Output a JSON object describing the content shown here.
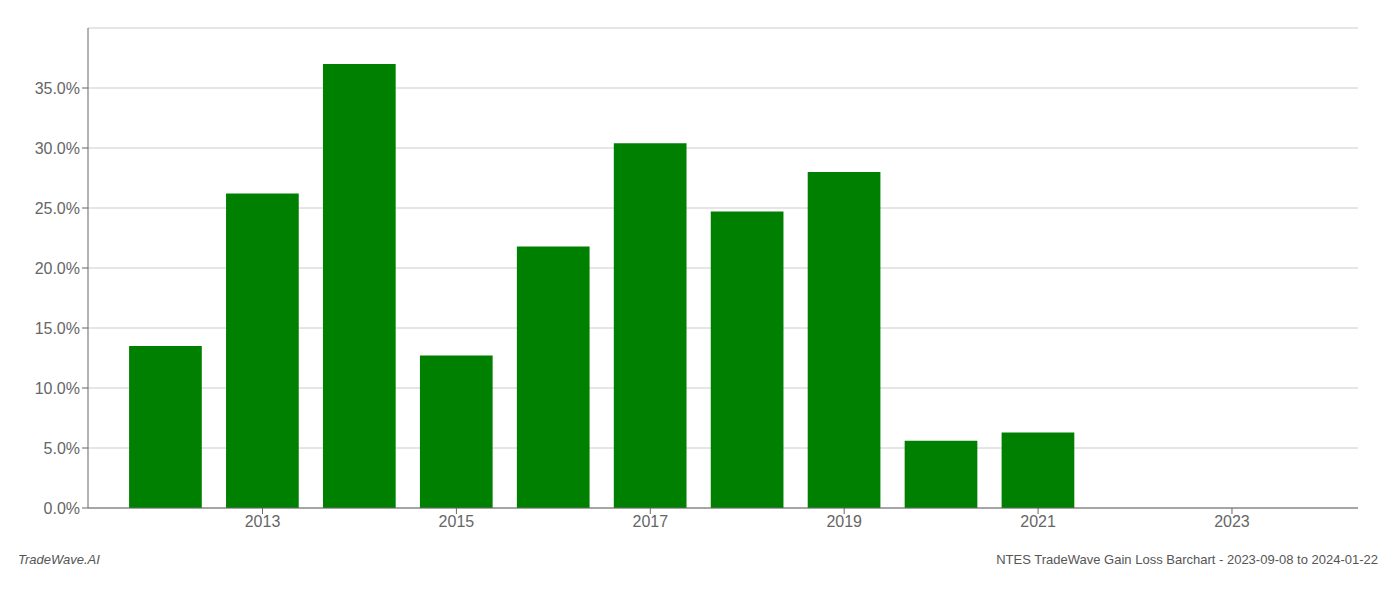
{
  "chart_data": {
    "type": "bar",
    "x": [
      2012,
      2013,
      2014,
      2015,
      2016,
      2017,
      2018,
      2019,
      2020,
      2021,
      2022
    ],
    "values": [
      0.135,
      0.262,
      0.37,
      0.127,
      0.218,
      0.304,
      0.247,
      0.28,
      0.056,
      0.063,
      0.0
    ],
    "color": "#008000",
    "xlim": [
      2011.2,
      2024.3
    ],
    "xticks": [
      2013,
      2015,
      2017,
      2019,
      2021,
      2023
    ],
    "ylim": [
      0,
      0.4
    ],
    "yticks": [
      {
        "value": 0.0,
        "label": "0.0%"
      },
      {
        "value": 0.05,
        "label": "5.0%"
      },
      {
        "value": 0.1,
        "label": "10.0%"
      },
      {
        "value": 0.15,
        "label": "15.0%"
      },
      {
        "value": 0.2,
        "label": "20.0%"
      },
      {
        "value": 0.25,
        "label": "25.0%"
      },
      {
        "value": 0.3,
        "label": "30.0%"
      },
      {
        "value": 0.35,
        "label": "35.0%"
      }
    ],
    "grid": true,
    "annotations": [
      "TradeWave.AI",
      "NTES TradeWave Gain Loss Barchart - 2023-09-08 to 2024-01-22"
    ]
  }
}
